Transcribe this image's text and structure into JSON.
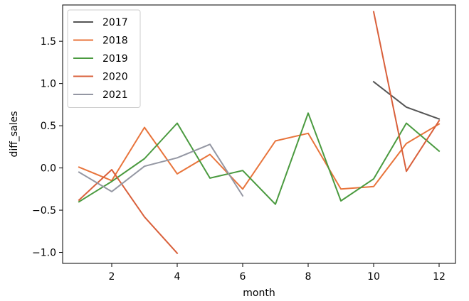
{
  "chart_data": {
    "type": "line",
    "title": "",
    "xlabel": "month",
    "ylabel": "diff_sales",
    "xlim": [
      0.5,
      12.5
    ],
    "ylim": [
      -1.13,
      1.93
    ],
    "xticks": [
      2,
      4,
      6,
      8,
      10,
      12
    ],
    "yticks": [
      -1.0,
      -0.5,
      0.0,
      0.5,
      1.0,
      1.5
    ],
    "ytick_labels": [
      "−1.0",
      "−0.5",
      "0.0",
      "0.5",
      "1.0",
      "1.5"
    ],
    "grid": false,
    "legend_position": "top-left",
    "series": [
      {
        "name": "2017",
        "color": "#555555",
        "x": [
          10,
          11,
          12
        ],
        "y": [
          1.02,
          0.72,
          0.58
        ]
      },
      {
        "name": "2018",
        "color": "#e8743b",
        "x": [
          1,
          2,
          3,
          4,
          5,
          6,
          7,
          8,
          9,
          10,
          11,
          12
        ],
        "y": [
          0.01,
          -0.15,
          0.48,
          -0.07,
          0.16,
          -0.25,
          0.32,
          0.41,
          -0.25,
          -0.22,
          0.29,
          0.52
        ]
      },
      {
        "name": "2019",
        "color": "#4a9a3f",
        "x": [
          1,
          2,
          3,
          4,
          5,
          6,
          7,
          8,
          9,
          10,
          11,
          12
        ],
        "y": [
          -0.4,
          -0.16,
          0.11,
          0.53,
          -0.12,
          -0.03,
          -0.43,
          0.65,
          -0.39,
          -0.13,
          0.53,
          0.2
        ]
      },
      {
        "name": "2020",
        "color": "#d9603b",
        "x": [
          1,
          2,
          3,
          4,
          10,
          11,
          12
        ],
        "y": [
          -0.38,
          -0.02,
          -0.58,
          -1.01,
          1.85,
          -0.04,
          0.56
        ],
        "segments": [
          [
            0,
            3
          ],
          [
            4,
            6
          ]
        ]
      },
      {
        "name": "2021",
        "color": "#9497a3",
        "x": [
          1,
          2,
          3,
          4,
          5,
          6
        ],
        "y": [
          -0.05,
          -0.28,
          0.02,
          0.12,
          0.28,
          -0.33
        ]
      }
    ]
  }
}
